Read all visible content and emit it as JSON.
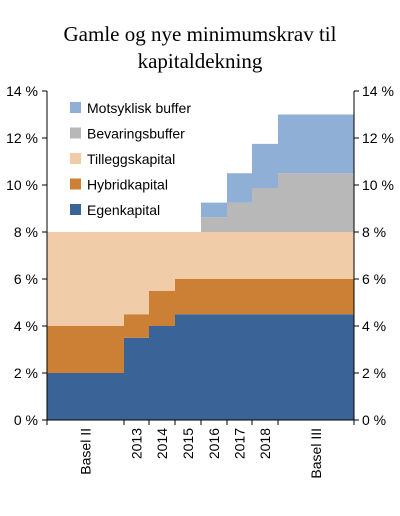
{
  "chart_data": {
    "type": "area",
    "stacked": true,
    "title_lines": [
      "Gamle og nye minimumskrav til",
      "kapitaldekning"
    ],
    "x": [
      "Basel II",
      "2013",
      "2014",
      "2015",
      "2016",
      "2017",
      "2018",
      "Basel III"
    ],
    "ylim": [
      0,
      14
    ],
    "y_ticks": [
      0,
      2,
      4,
      6,
      8,
      10,
      12,
      14
    ],
    "y_tick_format": "{v} %",
    "secondary_y_axis": true,
    "grid": false,
    "legend_position": "top-left",
    "series": [
      {
        "name": "Egenkapital",
        "color": "#3a6497",
        "values": [
          2.0,
          3.5,
          4.0,
          4.5,
          4.5,
          4.5,
          4.5,
          4.5
        ]
      },
      {
        "name": "Hybridkapital",
        "color": "#cc8035",
        "values": [
          2.0,
          1.0,
          1.5,
          1.5,
          1.5,
          1.5,
          1.5,
          1.5
        ]
      },
      {
        "name": "Tilleggskapital",
        "color": "#f0cda8",
        "values": [
          4.0,
          3.5,
          2.5,
          2.0,
          2.0,
          2.0,
          2.0,
          2.0
        ]
      },
      {
        "name": "Bevaringsbuffer",
        "color": "#b8b8b8",
        "values": [
          0,
          0,
          0,
          0,
          0.625,
          1.25,
          1.875,
          2.5
        ]
      },
      {
        "name": "Motsyklisk buffer",
        "color": "#8fafd6",
        "values": [
          0,
          0,
          0,
          0,
          0.625,
          1.25,
          1.875,
          2.5
        ]
      }
    ],
    "legend_order": [
      "Motsyklisk buffer",
      "Bevaringsbuffer",
      "Tilleggskapital",
      "Hybridkapital",
      "Egenkapital"
    ]
  }
}
